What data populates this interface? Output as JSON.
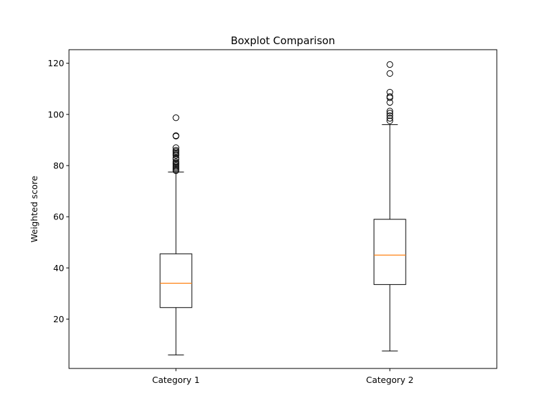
{
  "chart_data": {
    "type": "boxplot",
    "title": "Boxplot Comparison",
    "xlabel": "",
    "ylabel": "Weighted score",
    "ylim": [
      0.7,
      125.3
    ],
    "yticks": [
      20,
      40,
      60,
      80,
      100,
      120
    ],
    "grid": false,
    "categories": [
      "Category 1",
      "Category 2"
    ],
    "boxes": [
      {
        "category": "Category 1",
        "whisker_low": 6,
        "q1": 24.5,
        "median": 34,
        "q3": 45.5,
        "whisker_high": 77.5,
        "outliers": [
          78,
          78.5,
          79,
          79.5,
          80,
          80.5,
          81,
          81.5,
          82.5,
          83,
          84,
          84.5,
          85,
          85.5,
          86,
          87,
          91.5,
          91.7,
          98.7
        ]
      },
      {
        "category": "Category 2",
        "whisker_low": 7.5,
        "q1": 33.5,
        "median": 45,
        "q3": 59,
        "whisker_high": 96,
        "outliers": [
          97.5,
          98.5,
          99.5,
          100.5,
          101.3,
          104.7,
          106.5,
          107,
          108.7,
          116,
          119.5
        ]
      }
    ],
    "colors": {
      "box": "#000000",
      "median": "#ff7f0e",
      "outlier": "#000000"
    }
  }
}
